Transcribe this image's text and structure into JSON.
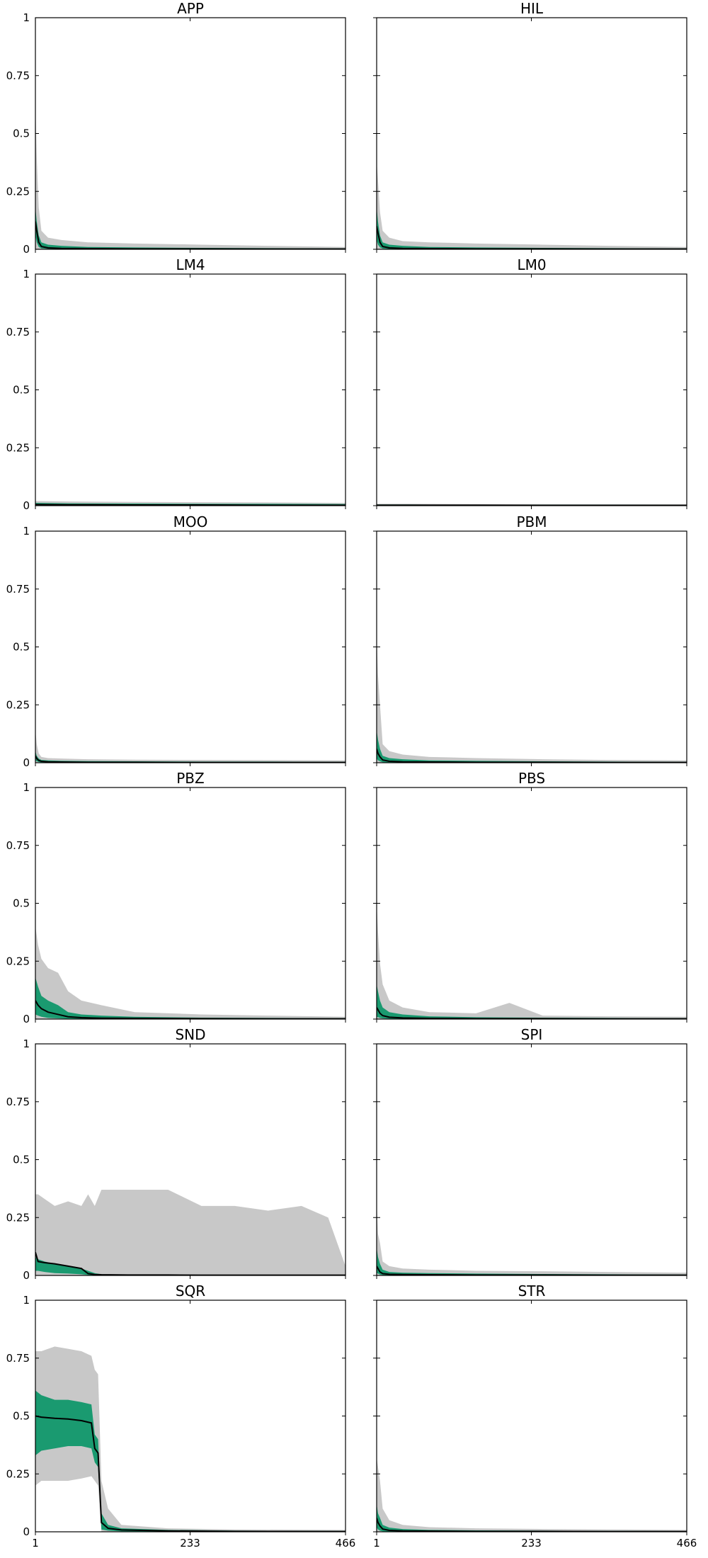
{
  "chart_data": {
    "type": "area",
    "layout": "6 rows x 2 columns small multiples",
    "x_range": [
      1,
      466
    ],
    "y_range": [
      0,
      1
    ],
    "x_tick_labels": [
      "1",
      "233",
      "466"
    ],
    "y_tick_labels": [
      "0",
      "0.25",
      "0.5",
      "0.75",
      "1"
    ],
    "x_ticks": [
      1,
      233,
      466
    ],
    "y_ticks": [
      0,
      0.25,
      0.5,
      0.75,
      1
    ],
    "grid": false,
    "layers": [
      "range band (min–max)",
      "interquartile band",
      "median line"
    ],
    "colors": {
      "outer_band": "#c8c8c8",
      "inner_band": "#1a9a70",
      "median": "#000000",
      "axes": "#000000"
    },
    "panels": [
      {
        "title": "APP",
        "x": [
          1,
          3,
          6,
          10,
          20,
          40,
          80,
          150,
          250,
          350,
          466
        ],
        "upper": [
          0.62,
          0.4,
          0.18,
          0.08,
          0.05,
          0.04,
          0.03,
          0.025,
          0.02,
          0.015,
          0.01
        ],
        "q3": [
          0.18,
          0.12,
          0.06,
          0.03,
          0.02,
          0.015,
          0.01,
          0.008,
          0.006,
          0.005,
          0.004
        ],
        "median": [
          0.12,
          0.08,
          0.03,
          0.012,
          0.006,
          0.004,
          0.003,
          0.002,
          0.002,
          0.001,
          0.001
        ],
        "q1": [
          0.06,
          0.03,
          0.01,
          0.004,
          0.002,
          0.001,
          0,
          0,
          0,
          0,
          0
        ],
        "lower": [
          0,
          0,
          0,
          0,
          0,
          0,
          0,
          0,
          0,
          0,
          0
        ]
      },
      {
        "title": "HIL",
        "x": [
          1,
          3,
          6,
          10,
          20,
          40,
          80,
          150,
          250,
          350,
          466
        ],
        "upper": [
          0.38,
          0.3,
          0.16,
          0.08,
          0.05,
          0.035,
          0.03,
          0.025,
          0.02,
          0.015,
          0.01
        ],
        "q3": [
          0.18,
          0.12,
          0.06,
          0.03,
          0.02,
          0.015,
          0.01,
          0.008,
          0.006,
          0.005,
          0.004
        ],
        "median": [
          0.1,
          0.07,
          0.03,
          0.012,
          0.006,
          0.004,
          0.003,
          0.002,
          0.002,
          0.001,
          0.001
        ],
        "q1": [
          0.04,
          0.02,
          0.008,
          0.003,
          0.001,
          0,
          0,
          0,
          0,
          0,
          0
        ],
        "lower": [
          0,
          0,
          0,
          0,
          0,
          0,
          0,
          0,
          0,
          0,
          0
        ]
      },
      {
        "title": "LM4",
        "x": [
          1,
          50,
          150,
          250,
          350,
          466
        ],
        "upper": [
          0.02,
          0.018,
          0.016,
          0.015,
          0.014,
          0.012
        ],
        "q3": [
          0.012,
          0.01,
          0.009,
          0.008,
          0.008,
          0.007
        ],
        "median": [
          0.005,
          0.004,
          0.003,
          0.003,
          0.002,
          0.002
        ],
        "q1": [
          0.001,
          0.001,
          0,
          0,
          0,
          0
        ],
        "lower": [
          0,
          0,
          0,
          0,
          0,
          0
        ]
      },
      {
        "title": "LM0",
        "x": [
          1,
          50,
          150,
          250,
          350,
          466
        ],
        "upper": [
          0.008,
          0.008,
          0.007,
          0.007,
          0.006,
          0.006
        ],
        "q3": [
          0.005,
          0.005,
          0.004,
          0.004,
          0.004,
          0.003
        ],
        "median": [
          0.002,
          0.002,
          0.002,
          0.001,
          0.001,
          0.001
        ],
        "q1": [
          0,
          0,
          0,
          0,
          0,
          0
        ],
        "lower": [
          0,
          0,
          0,
          0,
          0,
          0
        ]
      },
      {
        "title": "MOO",
        "x": [
          1,
          3,
          6,
          10,
          20,
          40,
          80,
          150,
          250,
          350,
          466
        ],
        "upper": [
          0.14,
          0.08,
          0.04,
          0.025,
          0.02,
          0.018,
          0.015,
          0.013,
          0.012,
          0.011,
          0.01
        ],
        "q3": [
          0.05,
          0.03,
          0.018,
          0.012,
          0.01,
          0.008,
          0.007,
          0.006,
          0.005,
          0.005,
          0.004
        ],
        "median": [
          0.03,
          0.018,
          0.01,
          0.006,
          0.004,
          0.003,
          0.002,
          0.002,
          0.001,
          0.001,
          0.001
        ],
        "q1": [
          0.01,
          0.006,
          0.003,
          0.001,
          0,
          0,
          0,
          0,
          0,
          0,
          0
        ],
        "lower": [
          0,
          0,
          0,
          0,
          0,
          0,
          0,
          0,
          0,
          0,
          0
        ]
      },
      {
        "title": "PBM",
        "x": [
          1,
          3,
          6,
          10,
          20,
          40,
          80,
          150,
          250,
          350,
          466
        ],
        "upper": [
          0.55,
          0.38,
          0.25,
          0.08,
          0.05,
          0.035,
          0.025,
          0.02,
          0.015,
          0.012,
          0.01
        ],
        "q3": [
          0.14,
          0.1,
          0.06,
          0.03,
          0.02,
          0.015,
          0.01,
          0.008,
          0.006,
          0.005,
          0.004
        ],
        "median": [
          0.06,
          0.04,
          0.025,
          0.012,
          0.006,
          0.004,
          0.003,
          0.002,
          0.002,
          0.001,
          0.001
        ],
        "q1": [
          0.02,
          0.01,
          0.006,
          0.002,
          0.001,
          0,
          0,
          0,
          0,
          0,
          0
        ],
        "lower": [
          0,
          0,
          0,
          0,
          0,
          0,
          0,
          0,
          0,
          0,
          0
        ]
      },
      {
        "title": "PBZ",
        "x": [
          1,
          5,
          10,
          20,
          35,
          50,
          70,
          100,
          150,
          250,
          350,
          466
        ],
        "upper": [
          0.4,
          0.32,
          0.26,
          0.22,
          0.2,
          0.12,
          0.08,
          0.06,
          0.03,
          0.02,
          0.015,
          0.01
        ],
        "q3": [
          0.18,
          0.14,
          0.1,
          0.08,
          0.06,
          0.03,
          0.02,
          0.015,
          0.01,
          0.006,
          0.005,
          0.004
        ],
        "median": [
          0.08,
          0.06,
          0.045,
          0.03,
          0.02,
          0.01,
          0.006,
          0.004,
          0.003,
          0.002,
          0.001,
          0.001
        ],
        "q1": [
          0.02,
          0.015,
          0.01,
          0.005,
          0.003,
          0.001,
          0,
          0,
          0,
          0,
          0,
          0
        ],
        "lower": [
          0,
          0,
          0,
          0,
          0,
          0,
          0,
          0,
          0,
          0,
          0,
          0
        ]
      },
      {
        "title": "PBS",
        "x": [
          1,
          3,
          6,
          10,
          20,
          40,
          80,
          150,
          200,
          250,
          350,
          466
        ],
        "upper": [
          0.5,
          0.38,
          0.24,
          0.15,
          0.08,
          0.05,
          0.03,
          0.025,
          0.07,
          0.015,
          0.012,
          0.01
        ],
        "q3": [
          0.15,
          0.12,
          0.08,
          0.05,
          0.03,
          0.02,
          0.012,
          0.008,
          0.007,
          0.006,
          0.005,
          0.004
        ],
        "median": [
          0.05,
          0.04,
          0.025,
          0.015,
          0.008,
          0.005,
          0.003,
          0.002,
          0.002,
          0.002,
          0.001,
          0.001
        ],
        "q1": [
          0.01,
          0.008,
          0.005,
          0.003,
          0.001,
          0,
          0,
          0,
          0,
          0,
          0,
          0
        ],
        "lower": [
          0,
          0,
          0,
          0,
          0,
          0,
          0,
          0,
          0,
          0,
          0,
          0
        ]
      },
      {
        "title": "SND",
        "x": [
          1,
          5,
          15,
          30,
          50,
          70,
          80,
          90,
          100,
          140,
          200,
          250,
          300,
          350,
          400,
          440,
          466
        ],
        "upper": [
          0.35,
          0.35,
          0.33,
          0.3,
          0.32,
          0.3,
          0.35,
          0.3,
          0.37,
          0.37,
          0.37,
          0.3,
          0.3,
          0.28,
          0.3,
          0.25,
          0.04
        ],
        "q3": [
          0.08,
          0.07,
          0.06,
          0.05,
          0.04,
          0.03,
          0.02,
          0.01,
          0.005,
          0.004,
          0.003,
          0.003,
          0.002,
          0.002,
          0.002,
          0.002,
          0.002
        ],
        "median": [
          0.1,
          0.06,
          0.055,
          0.05,
          0.04,
          0.03,
          0.008,
          0.004,
          0.003,
          0.002,
          0.002,
          0.001,
          0.001,
          0.001,
          0.001,
          0.001,
          0.001
        ],
        "q1": [
          0.02,
          0.02,
          0.015,
          0.01,
          0.008,
          0.005,
          0.002,
          0.001,
          0,
          0,
          0,
          0,
          0,
          0,
          0,
          0,
          0
        ],
        "lower": [
          0,
          0,
          0,
          0,
          0,
          0,
          0,
          0,
          0,
          0,
          0,
          0,
          0,
          0,
          0,
          0,
          0
        ]
      },
      {
        "title": "SPI",
        "x": [
          1,
          3,
          6,
          10,
          20,
          40,
          80,
          150,
          250,
          350,
          466
        ],
        "upper": [
          0.32,
          0.18,
          0.14,
          0.06,
          0.04,
          0.03,
          0.025,
          0.02,
          0.018,
          0.015,
          0.012
        ],
        "q3": [
          0.12,
          0.08,
          0.05,
          0.025,
          0.015,
          0.012,
          0.01,
          0.008,
          0.006,
          0.005,
          0.004
        ],
        "median": [
          0.04,
          0.03,
          0.015,
          0.008,
          0.005,
          0.004,
          0.003,
          0.002,
          0.002,
          0.001,
          0.001
        ],
        "q1": [
          0.01,
          0.008,
          0.004,
          0.002,
          0.001,
          0,
          0,
          0,
          0,
          0,
          0
        ],
        "lower": [
          0,
          0,
          0,
          0,
          0,
          0,
          0,
          0,
          0,
          0,
          0
        ]
      },
      {
        "title": "SQR",
        "x": [
          1,
          10,
          30,
          50,
          70,
          85,
          90,
          95,
          100,
          110,
          130,
          200,
          300,
          466
        ],
        "upper": [
          0.78,
          0.78,
          0.8,
          0.79,
          0.78,
          0.76,
          0.7,
          0.68,
          0.22,
          0.1,
          0.03,
          0.015,
          0.01,
          0.008
        ],
        "q3": [
          0.61,
          0.59,
          0.57,
          0.57,
          0.56,
          0.55,
          0.42,
          0.4,
          0.08,
          0.03,
          0.015,
          0.008,
          0.005,
          0.004
        ],
        "median": [
          0.5,
          0.495,
          0.49,
          0.487,
          0.48,
          0.47,
          0.36,
          0.34,
          0.04,
          0.015,
          0.008,
          0.004,
          0.002,
          0.001
        ],
        "q1": [
          0.33,
          0.35,
          0.36,
          0.37,
          0.37,
          0.36,
          0.3,
          0.28,
          0.01,
          0.005,
          0.002,
          0.001,
          0,
          0
        ],
        "lower": [
          0.2,
          0.22,
          0.22,
          0.22,
          0.23,
          0.24,
          0.22,
          0.2,
          0,
          0,
          0,
          0,
          0,
          0
        ]
      },
      {
        "title": "STR",
        "x": [
          1,
          3,
          6,
          10,
          20,
          40,
          80,
          150,
          250,
          350,
          466
        ],
        "upper": [
          0.32,
          0.28,
          0.22,
          0.1,
          0.05,
          0.03,
          0.02,
          0.015,
          0.012,
          0.01,
          0.008
        ],
        "q3": [
          0.12,
          0.08,
          0.06,
          0.03,
          0.018,
          0.012,
          0.008,
          0.006,
          0.005,
          0.004,
          0.003
        ],
        "median": [
          0.06,
          0.04,
          0.025,
          0.012,
          0.006,
          0.004,
          0.003,
          0.002,
          0.002,
          0.001,
          0.001
        ],
        "q1": [
          0.02,
          0.01,
          0.005,
          0.002,
          0.001,
          0,
          0,
          0,
          0,
          0,
          0
        ],
        "lower": [
          0,
          0,
          0,
          0,
          0,
          0,
          0,
          0,
          0,
          0,
          0
        ]
      }
    ]
  }
}
